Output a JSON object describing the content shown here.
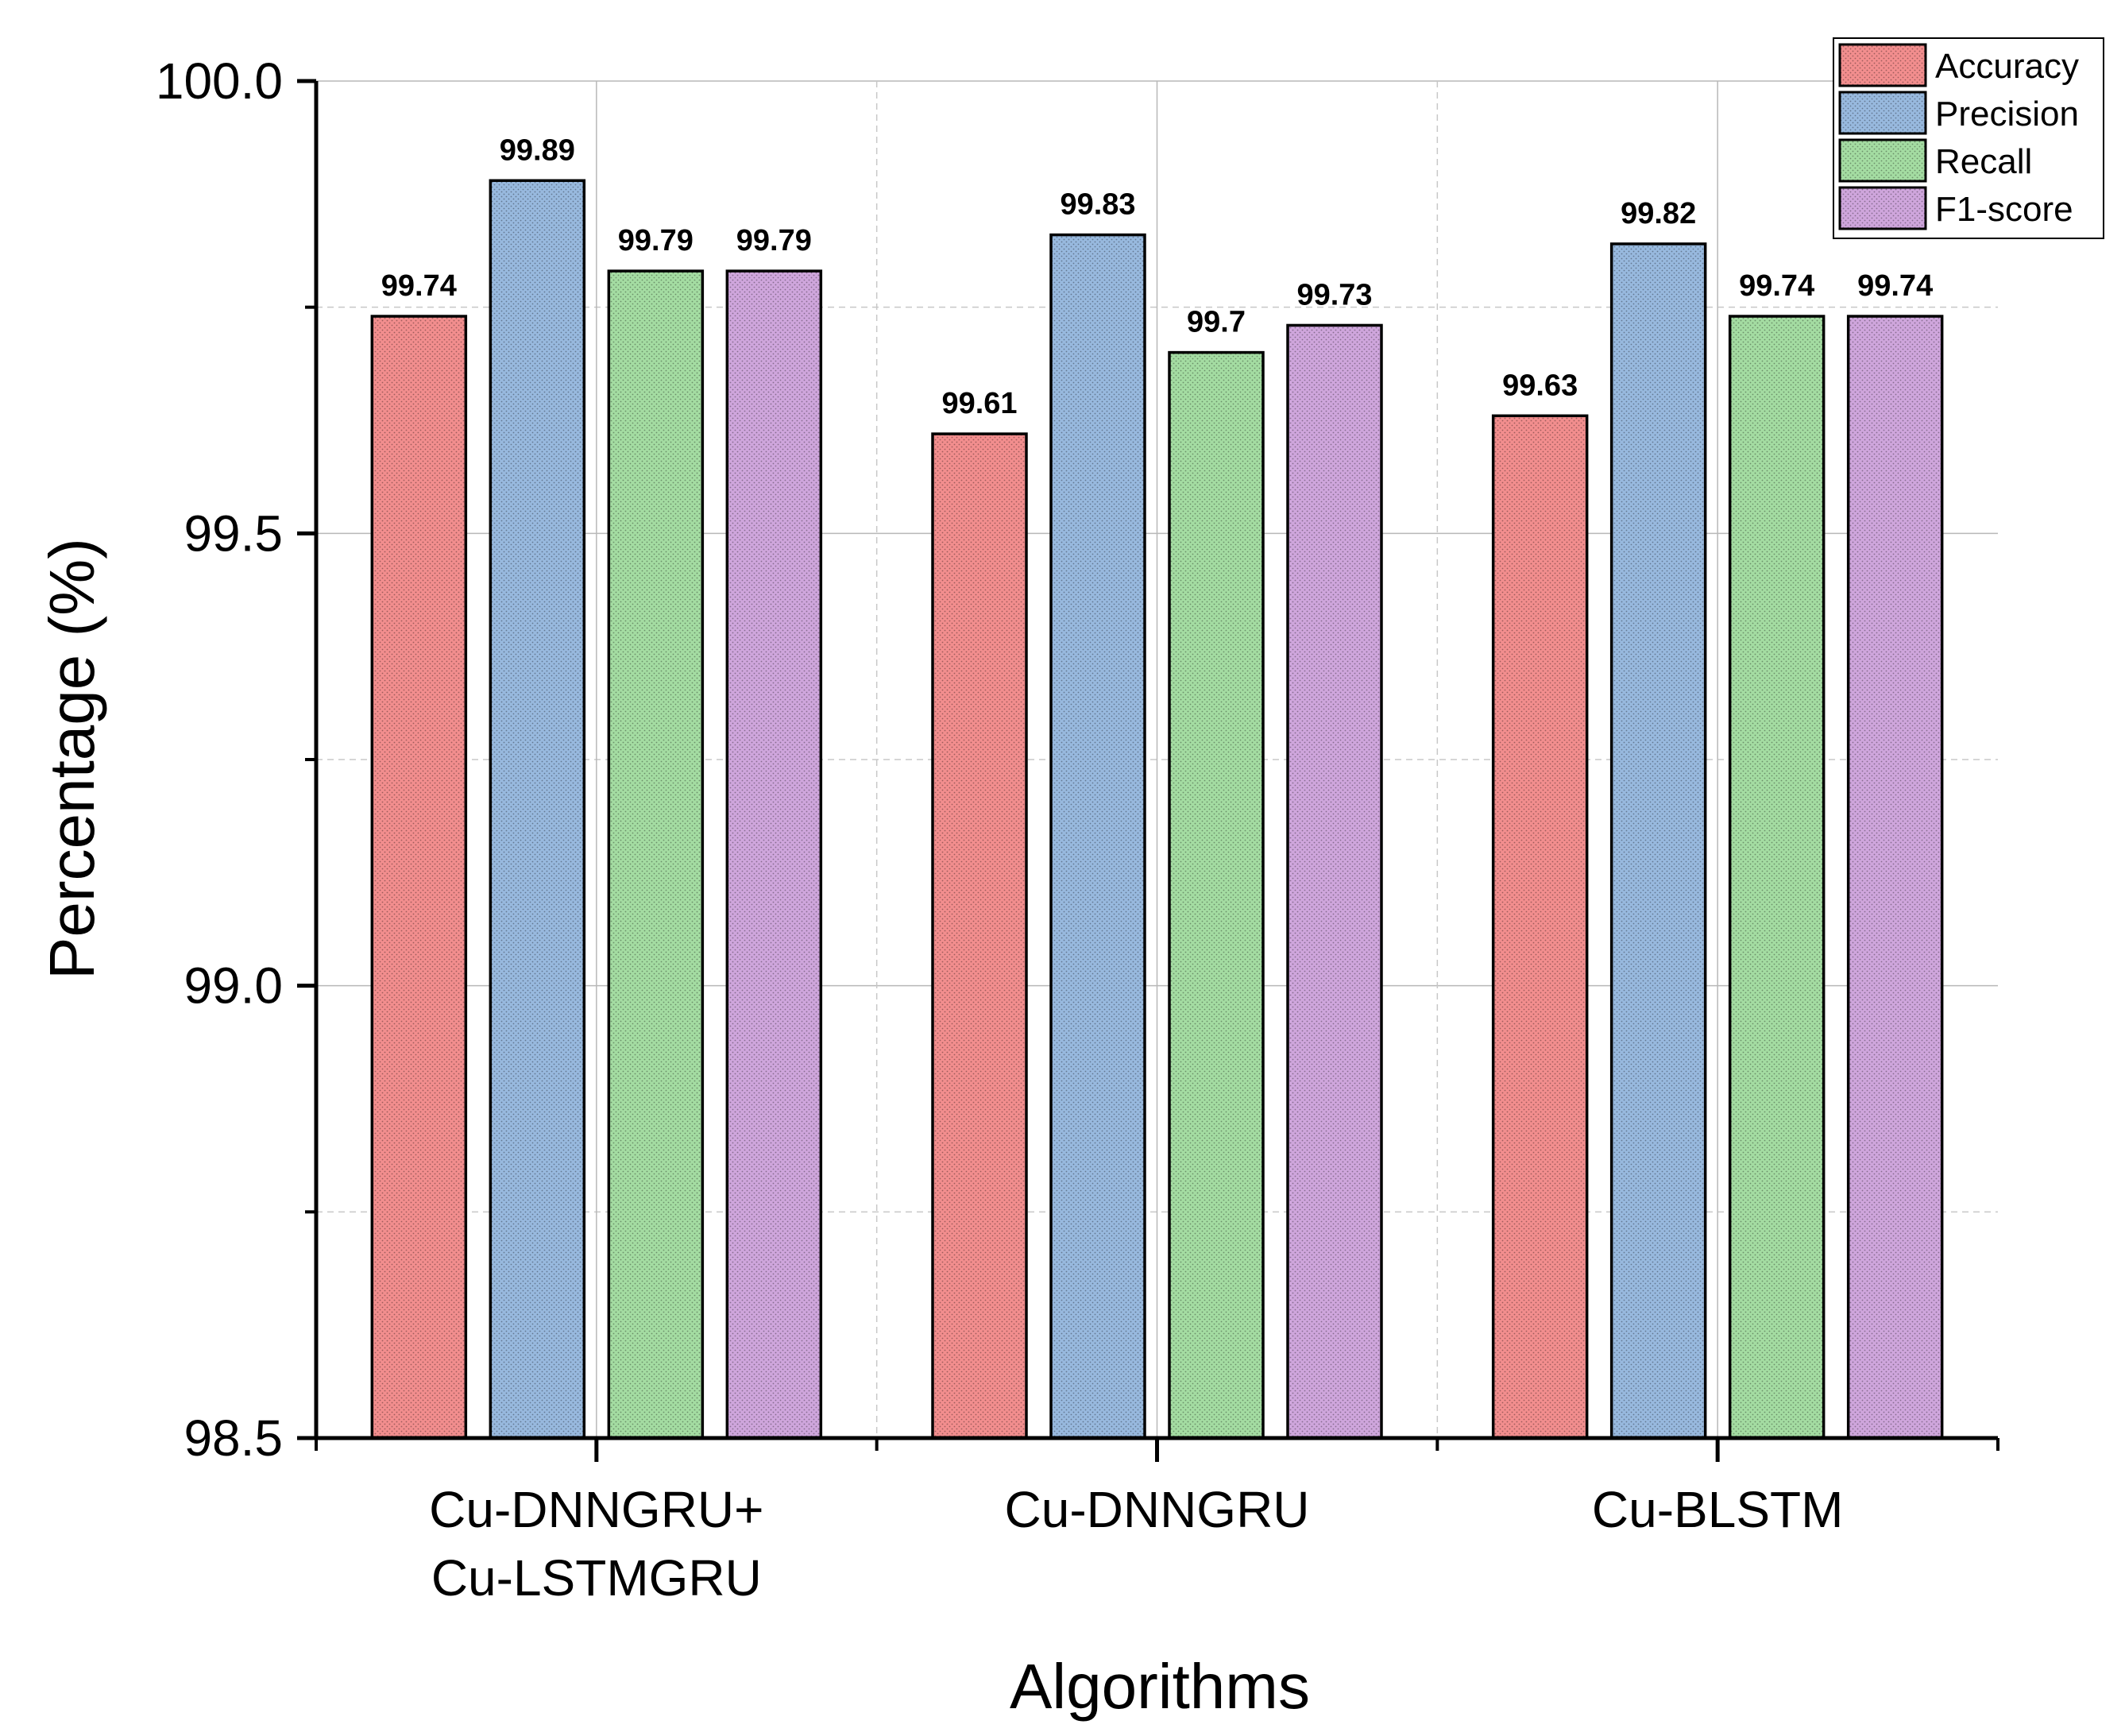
{
  "chart_data": {
    "type": "bar",
    "categories": [
      [
        "Cu-DNNGRU+",
        "Cu-LSTMGRU"
      ],
      [
        "Cu-DNNGRU"
      ],
      [
        "Cu-BLSTM"
      ]
    ],
    "series": [
      {
        "name": "Accuracy",
        "color": "#f28e8e",
        "values": [
          99.74,
          99.61,
          99.63
        ],
        "labels": [
          "99.74",
          "99.61",
          "99.63"
        ]
      },
      {
        "name": "Precision",
        "color": "#98b9de",
        "values": [
          99.89,
          99.83,
          99.82
        ],
        "labels": [
          "99.89",
          "99.83",
          "99.82"
        ]
      },
      {
        "name": "Recall",
        "color": "#a4dca2",
        "values": [
          99.79,
          99.7,
          99.74
        ],
        "labels": [
          "99.79",
          "99.7",
          "99.74"
        ]
      },
      {
        "name": "F1-score",
        "color": "#cfa6dc",
        "values": [
          99.79,
          99.73,
          99.74
        ],
        "labels": [
          "99.79",
          "99.73",
          "99.74"
        ]
      }
    ],
    "xlabel": "Algorithms",
    "ylabel": "Percentage (%)",
    "ylim": [
      98.5,
      100.0
    ],
    "yticks": [
      "98.5",
      "99.0",
      "99.5",
      "100.0"
    ],
    "ytick_values": [
      98.5,
      99.0,
      99.5,
      100.0
    ],
    "minor_ytick_values": [
      98.75,
      99.25,
      99.75
    ],
    "grid": true,
    "legend_position": "top-right"
  }
}
